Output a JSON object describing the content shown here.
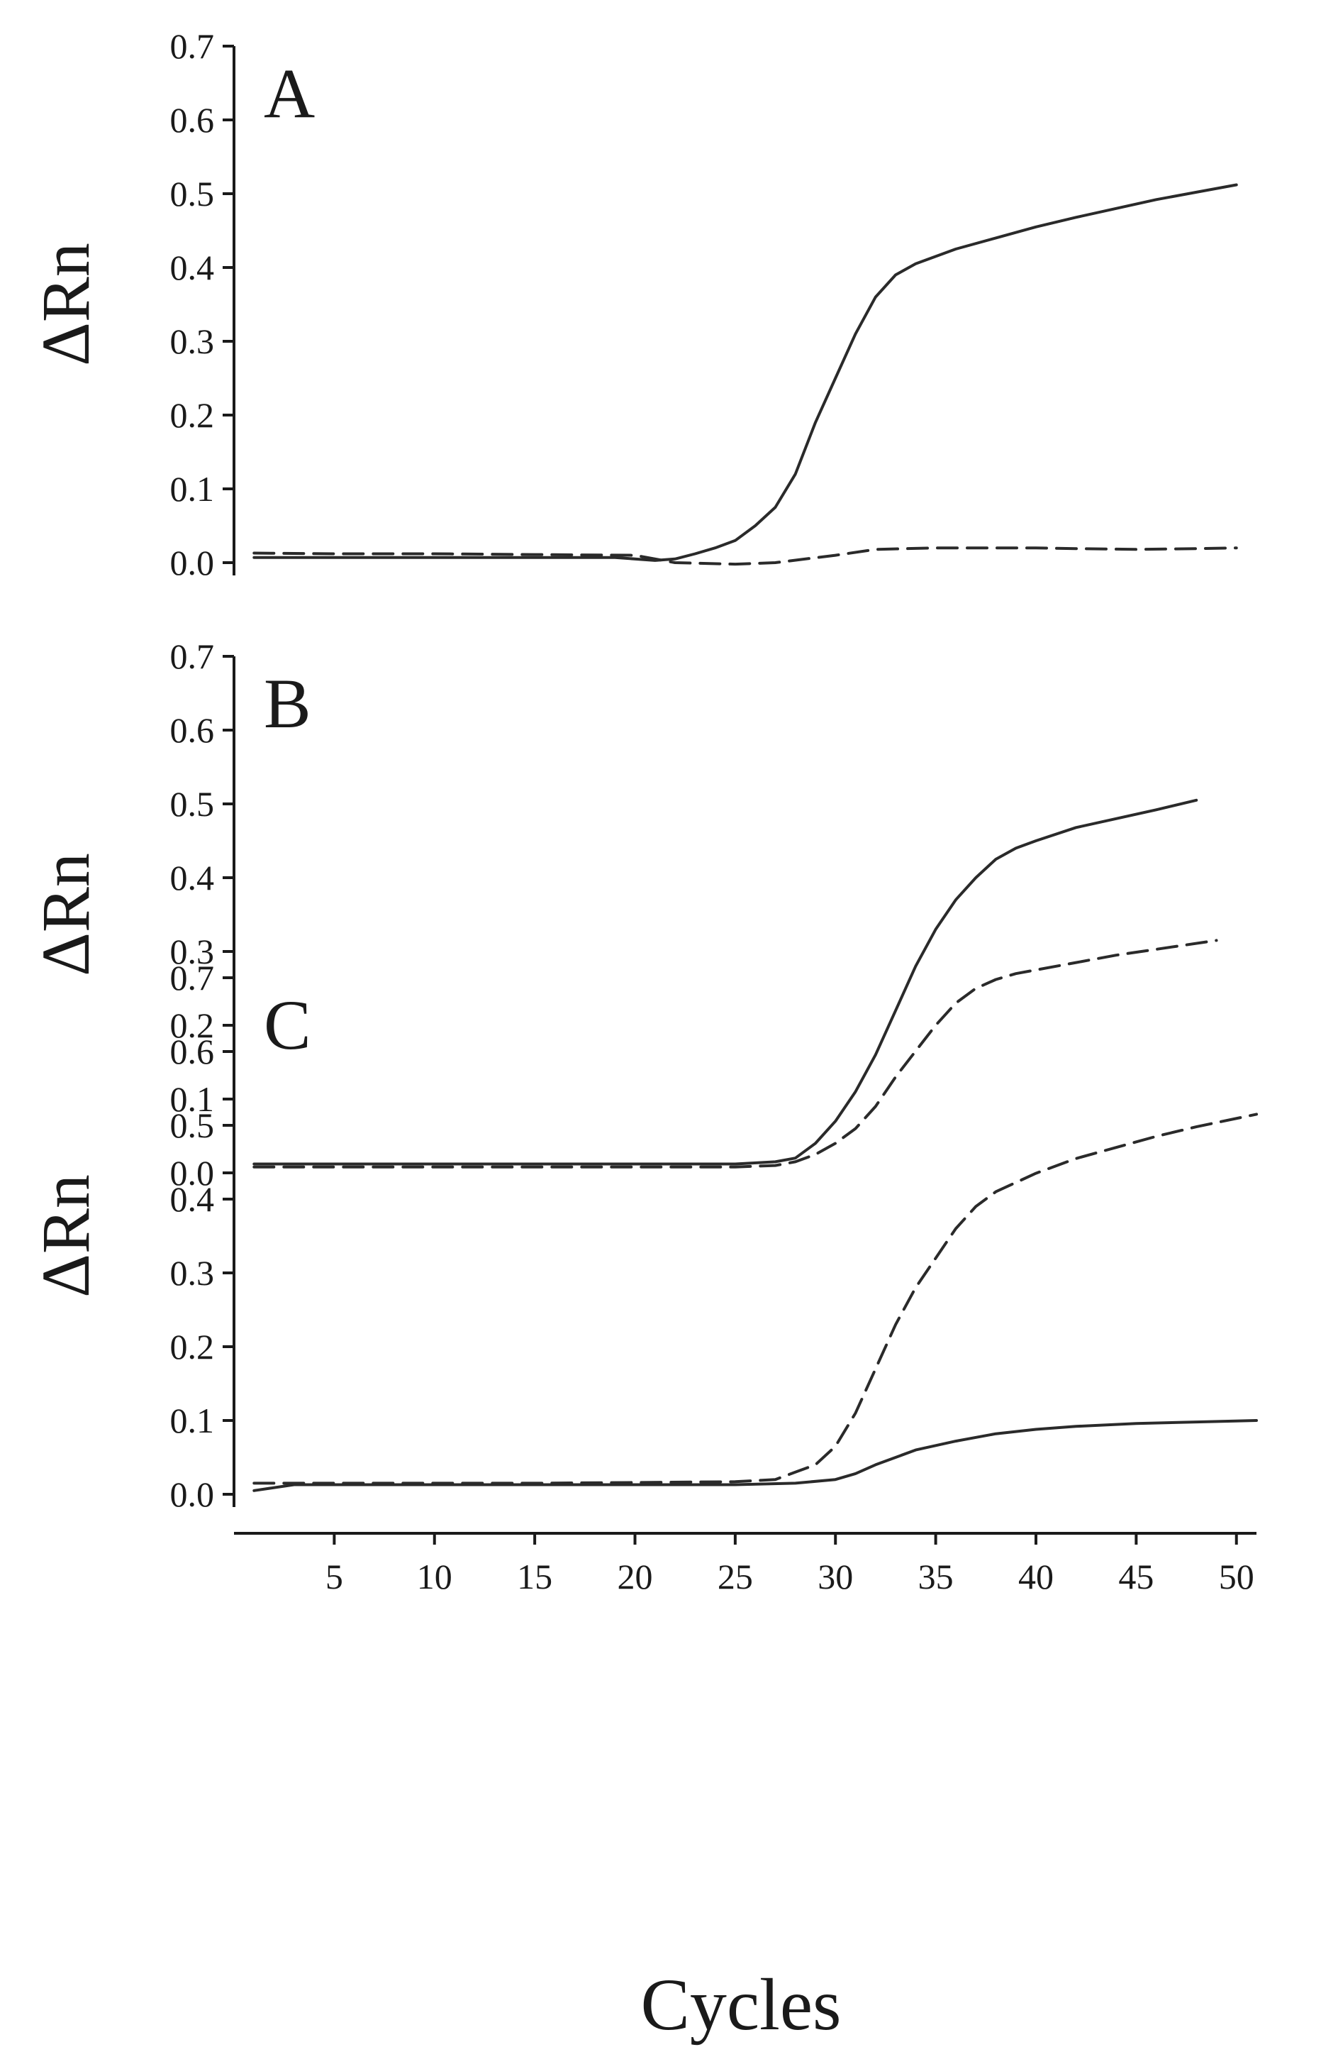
{
  "chart_data": [
    {
      "type": "line",
      "panel_label": "A",
      "ylabel": "ΔRn",
      "xlabel": "",
      "ylim": [
        0,
        0.7
      ],
      "yticks": [
        "0.0",
        "0.1",
        "0.2",
        "0.3",
        "0.4",
        "0.5",
        "0.6",
        "0.7"
      ],
      "xticks": [],
      "xlim": [
        0,
        51
      ],
      "series": [
        {
          "style": "solid",
          "x": [
            1,
            5,
            10,
            15,
            19,
            21,
            22,
            23,
            24,
            25,
            26,
            27,
            28,
            29,
            30,
            31,
            32,
            33,
            34,
            35,
            36,
            38,
            40,
            42,
            44,
            46,
            48,
            50
          ],
          "y": [
            0.007,
            0.007,
            0.007,
            0.007,
            0.007,
            0.003,
            0.005,
            0.012,
            0.02,
            0.03,
            0.05,
            0.075,
            0.12,
            0.19,
            0.25,
            0.31,
            0.36,
            0.39,
            0.405,
            0.415,
            0.425,
            0.44,
            0.455,
            0.468,
            0.48,
            0.492,
            0.502,
            0.512
          ]
        },
        {
          "style": "dashed",
          "x": [
            1,
            5,
            10,
            15,
            20,
            22,
            25,
            27,
            30,
            32,
            35,
            38,
            40,
            42,
            45,
            48,
            50
          ],
          "y": [
            0.013,
            0.012,
            0.012,
            0.011,
            0.01,
            0.0,
            -0.002,
            0.0,
            0.01,
            0.018,
            0.02,
            0.02,
            0.02,
            0.019,
            0.018,
            0.019,
            0.02
          ]
        }
      ]
    },
    {
      "type": "line",
      "panel_label": "B",
      "ylabel": "ΔRn",
      "xlabel": "",
      "ylim": [
        0,
        0.7
      ],
      "yticks": [
        "0.0",
        "0.1",
        "0.2",
        "0.3",
        "0.4",
        "0.5",
        "0.6",
        "0.7"
      ],
      "xticks": [],
      "xlim": [
        0,
        51
      ],
      "series": [
        {
          "style": "solid",
          "x": [
            1,
            5,
            10,
            15,
            20,
            25,
            27,
            28,
            29,
            30,
            31,
            32,
            33,
            34,
            35,
            36,
            37,
            38,
            39,
            40,
            42,
            44,
            46,
            48
          ],
          "y": [
            0.012,
            0.012,
            0.012,
            0.012,
            0.012,
            0.012,
            0.015,
            0.02,
            0.04,
            0.07,
            0.11,
            0.16,
            0.22,
            0.28,
            0.33,
            0.37,
            0.4,
            0.425,
            0.44,
            0.45,
            0.468,
            0.48,
            0.492,
            0.505
          ]
        },
        {
          "style": "dashed",
          "x": [
            1,
            5,
            10,
            15,
            20,
            25,
            27,
            28,
            29,
            30,
            31,
            32,
            33,
            34,
            35,
            36,
            37,
            38,
            39,
            40,
            42,
            44,
            46,
            49
          ],
          "y": [
            0.008,
            0.008,
            0.008,
            0.008,
            0.008,
            0.008,
            0.01,
            0.015,
            0.025,
            0.04,
            0.06,
            0.09,
            0.13,
            0.165,
            0.2,
            0.23,
            0.25,
            0.262,
            0.27,
            0.275,
            0.285,
            0.295,
            0.303,
            0.315
          ]
        }
      ]
    },
    {
      "type": "line",
      "panel_label": "C",
      "ylabel": "ΔRn",
      "xlabel": "Cycles",
      "ylim": [
        0,
        0.7
      ],
      "yticks": [
        "0.0",
        "0.1",
        "0.2",
        "0.3",
        "0.4",
        "0.5",
        "0.6",
        "0.7"
      ],
      "xticks": [
        "5",
        "10",
        "15",
        "20",
        "25",
        "30",
        "35",
        "40",
        "45",
        "50"
      ],
      "xlim": [
        0,
        51
      ],
      "series": [
        {
          "style": "solid",
          "x": [
            1,
            3,
            5,
            10,
            15,
            20,
            25,
            28,
            30,
            31,
            32,
            34,
            36,
            38,
            40,
            42,
            45,
            48,
            51
          ],
          "y": [
            0.005,
            0.013,
            0.013,
            0.013,
            0.013,
            0.013,
            0.013,
            0.015,
            0.02,
            0.028,
            0.04,
            0.06,
            0.072,
            0.082,
            0.088,
            0.092,
            0.096,
            0.098,
            0.1
          ]
        },
        {
          "style": "dashed",
          "x": [
            1,
            5,
            10,
            15,
            20,
            25,
            27,
            28,
            29,
            30,
            31,
            32,
            33,
            34,
            35,
            36,
            37,
            38,
            40,
            42,
            44,
            46,
            48,
            51
          ],
          "y": [
            0.015,
            0.015,
            0.015,
            0.015,
            0.016,
            0.017,
            0.02,
            0.03,
            0.04,
            0.065,
            0.11,
            0.17,
            0.23,
            0.28,
            0.32,
            0.36,
            0.39,
            0.41,
            0.435,
            0.455,
            0.47,
            0.485,
            0.498,
            0.515
          ]
        }
      ]
    }
  ]
}
